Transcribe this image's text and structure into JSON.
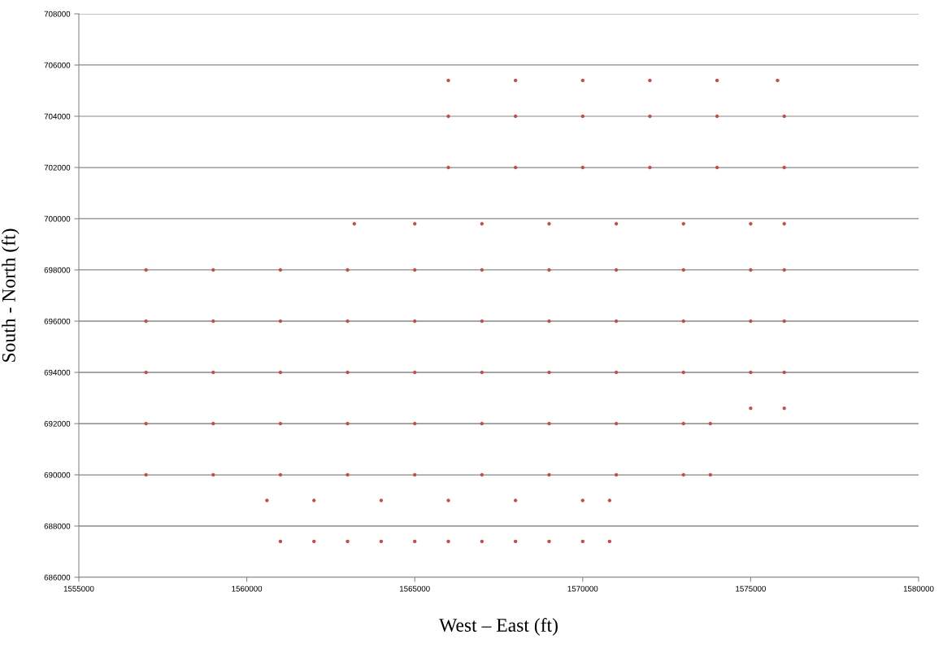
{
  "chart_data": {
    "type": "scatter",
    "xlabel": "West – East (ft)",
    "ylabel": "South - North (ft)",
    "xlim": [
      1555000,
      1580000
    ],
    "xticks": [
      1555000,
      1560000,
      1565000,
      1570000,
      1575000,
      1580000
    ],
    "ylim": [
      686000,
      708000
    ],
    "yticks": [
      686000,
      688000,
      690000,
      692000,
      694000,
      696000,
      698000,
      700000,
      702000,
      704000,
      706000,
      708000
    ],
    "grid": "y",
    "marker": "circle",
    "series": [
      {
        "color": "#c0504d",
        "x": [
          1561000,
          1562000,
          1563000,
          1564000,
          1565000,
          1566000,
          1567000,
          1568000,
          1569000,
          1570000,
          1570800,
          1560600,
          1562000,
          1564000,
          1566000,
          1568000,
          1570000,
          1570800,
          1557000,
          1559000,
          1561000,
          1563000,
          1565000,
          1567000,
          1569000,
          1571000,
          1573000,
          1573800,
          1557000,
          1559000,
          1561000,
          1563000,
          1565000,
          1567000,
          1569000,
          1571000,
          1573000,
          1573800,
          1575000,
          1576000,
          1557000,
          1559000,
          1561000,
          1563000,
          1565000,
          1567000,
          1569000,
          1571000,
          1573000,
          1575000,
          1576000,
          1557000,
          1559000,
          1561000,
          1563000,
          1565000,
          1567000,
          1569000,
          1571000,
          1573000,
          1575000,
          1576000,
          1557000,
          1559000,
          1561000,
          1563000,
          1565000,
          1567000,
          1569000,
          1571000,
          1573000,
          1575000,
          1576000,
          1563200,
          1565000,
          1567000,
          1569000,
          1571000,
          1573000,
          1575000,
          1576000,
          1566000,
          1568000,
          1570000,
          1572000,
          1574000,
          1576000,
          1566000,
          1568000,
          1570000,
          1572000,
          1574000,
          1576000,
          1566000,
          1568000,
          1570000,
          1572000,
          1574000,
          1575800
        ],
        "values": [
          687400,
          687400,
          687400,
          687400,
          687400,
          687400,
          687400,
          687400,
          687400,
          687400,
          687400,
          689000,
          689000,
          689000,
          689000,
          689000,
          689000,
          689000,
          690000,
          690000,
          690000,
          690000,
          690000,
          690000,
          690000,
          690000,
          690000,
          690000,
          692000,
          692000,
          692000,
          692000,
          692000,
          692000,
          692000,
          692000,
          692000,
          692000,
          692600,
          692600,
          694000,
          694000,
          694000,
          694000,
          694000,
          694000,
          694000,
          694000,
          694000,
          694000,
          694000,
          696000,
          696000,
          696000,
          696000,
          696000,
          696000,
          696000,
          696000,
          696000,
          696000,
          696000,
          698000,
          698000,
          698000,
          698000,
          698000,
          698000,
          698000,
          698000,
          698000,
          698000,
          698000,
          699800,
          699800,
          699800,
          699800,
          699800,
          699800,
          699800,
          699800,
          702000,
          702000,
          702000,
          702000,
          702000,
          702000,
          704000,
          704000,
          704000,
          704000,
          704000,
          704000,
          705400,
          705400,
          705400,
          705400,
          705400,
          705400
        ]
      }
    ]
  }
}
